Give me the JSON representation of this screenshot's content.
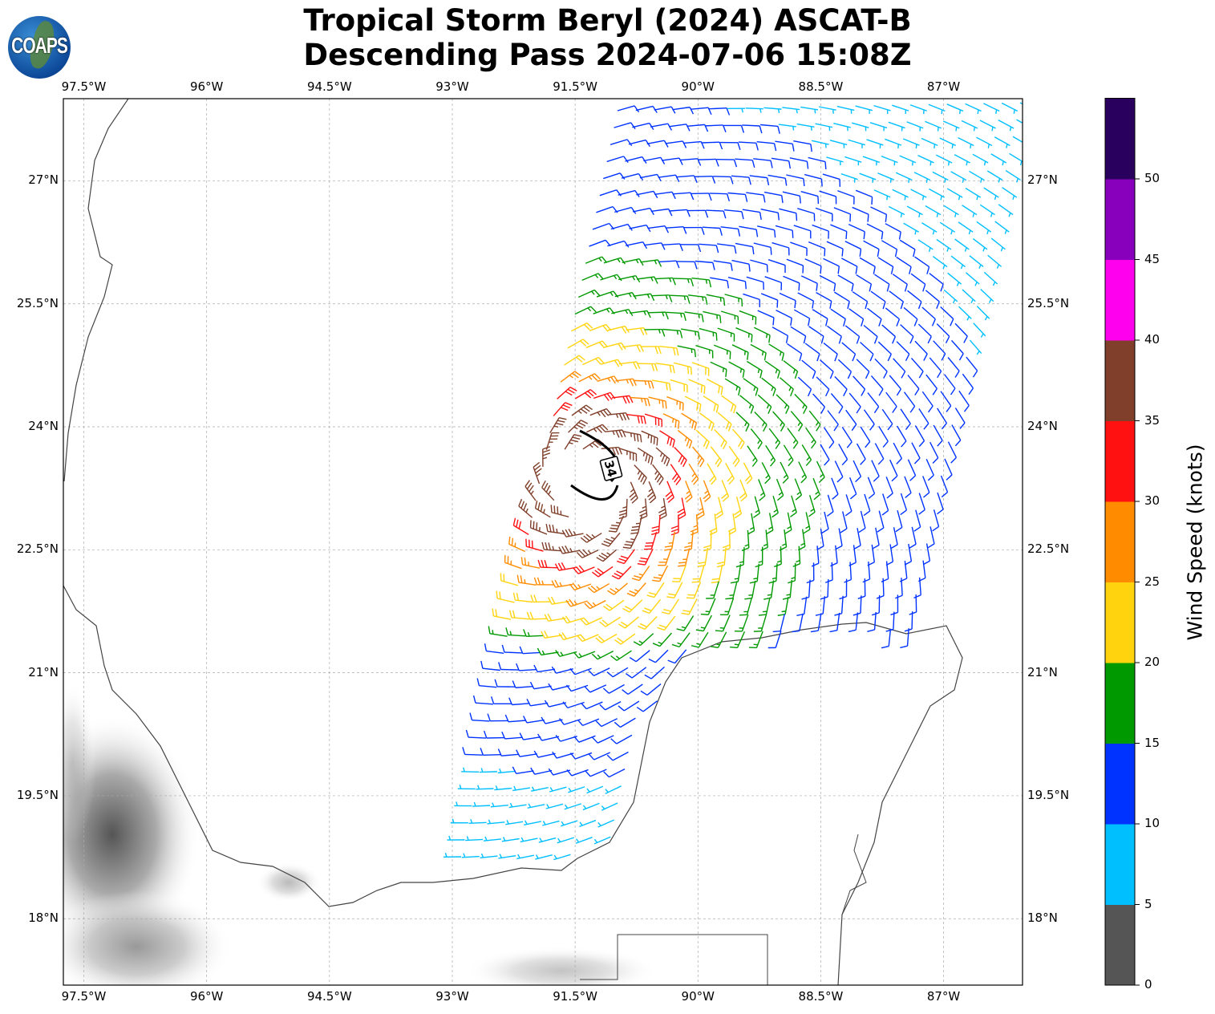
{
  "header": {
    "title_line1": "Tropical Storm Beryl (2024) ASCAT-B",
    "title_line2": "Descending Pass 2024-07-06 15:08Z",
    "logo_text": "COAPS"
  },
  "map": {
    "lon_ticks": [
      "97.5°W",
      "96°W",
      "94.5°W",
      "93°W",
      "91.5°W",
      "90°W",
      "88.5°W",
      "87°W"
    ],
    "lon_values": [
      -97.5,
      -96,
      -94.5,
      -93,
      -91.5,
      -90,
      -88.5,
      -87
    ],
    "lat_ticks": [
      "27°N",
      "25.5°N",
      "24°N",
      "22.5°N",
      "21°N",
      "19.5°N",
      "18°N"
    ],
    "lat_values": [
      27,
      25.5,
      24,
      22.5,
      21,
      19.5,
      18
    ],
    "extent": {
      "lon_min": -97.75,
      "lon_max": -86.04,
      "lat_min": 17.19,
      "lat_max": 28.0
    },
    "wind_radius_label": "34",
    "storm_center": {
      "lon": -91.3,
      "lat": 23.3
    }
  },
  "colorbar": {
    "label": "Wind Speed (knots)",
    "ticks": [
      "0",
      "5",
      "10",
      "15",
      "20",
      "25",
      "30",
      "35",
      "40",
      "45",
      "50"
    ],
    "bounds": [
      0,
      5,
      10,
      15,
      20,
      25,
      30,
      35,
      40,
      45,
      50,
      55
    ],
    "colors": [
      "#555555",
      "#00bfff",
      "#0033ff",
      "#009900",
      "#ffd40f",
      "#ff8c00",
      "#ff1111",
      "#7f3f2a",
      "#ff00ee",
      "#8800bb",
      "#2a005f"
    ]
  }
}
